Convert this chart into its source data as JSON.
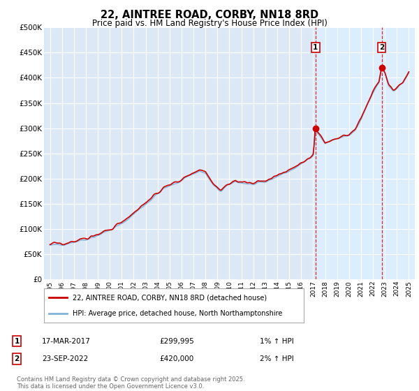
{
  "title": "22, AINTREE ROAD, CORBY, NN18 8RD",
  "subtitle": "Price paid vs. HM Land Registry's House Price Index (HPI)",
  "ylim": [
    0,
    500000
  ],
  "yticks": [
    0,
    50000,
    100000,
    150000,
    200000,
    250000,
    300000,
    350000,
    400000,
    450000,
    500000
  ],
  "background_color": "#ffffff",
  "plot_bg_color": "#dce8f5",
  "grid_color": "#ffffff",
  "legend_label_red": "22, AINTREE ROAD, CORBY, NN18 8RD (detached house)",
  "legend_label_blue": "HPI: Average price, detached house, North Northamptonshire",
  "sale1_date": "17-MAR-2017",
  "sale1_price": "£299,995",
  "sale1_hpi": "1% ↑ HPI",
  "sale2_date": "23-SEP-2022",
  "sale2_price": "£420,000",
  "sale2_hpi": "2% ↑ HPI",
  "footer": "Contains HM Land Registry data © Crown copyright and database right 2025.\nThis data is licensed under the Open Government Licence v3.0.",
  "marker1_x": 2017.205,
  "marker1_y": 299995,
  "marker2_x": 2022.728,
  "marker2_y": 420000,
  "vline1_x": 2017.205,
  "vline2_x": 2022.728,
  "red_color": "#cc0000",
  "blue_color": "#7fb3d9",
  "shade_color": "#ddeeff",
  "xmin": 1995.0,
  "xmax": 2025.5
}
